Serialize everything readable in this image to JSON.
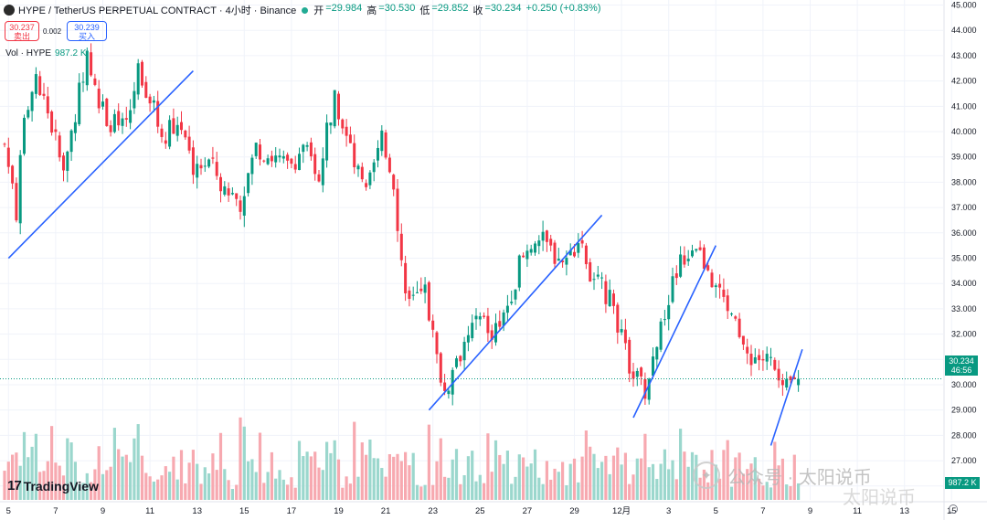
{
  "header": {
    "title": "HYPE / TetherUS PERPETUAL CONTRACT · 4小时 · Binance",
    "ohlc": [
      {
        "k": "开",
        "v": "=29.984"
      },
      {
        "k": "高",
        "v": "=30.530"
      },
      {
        "k": "低",
        "v": "=29.852"
      },
      {
        "k": "收",
        "v": "=30.234"
      },
      {
        "k": "",
        "v": "+0.250 (+0.83%)"
      }
    ]
  },
  "trade": {
    "sell_price": "30.237",
    "sell_label": "卖出",
    "spread": "0.002",
    "buy_price": "30.239",
    "buy_label": "买入"
  },
  "volume": {
    "label": "Vol · HYPE",
    "value": "987.2 K",
    "tag": "987.2 K"
  },
  "price_tag": {
    "price": "30.234",
    "countdown": "46:56"
  },
  "branding": {
    "logo_text": "TradingView",
    "logo_mark": "17"
  },
  "watermark": {
    "text": "公众号 · 太阳说币",
    "text2": "太阳说币"
  },
  "colors": {
    "up": "#089981",
    "down": "#f23645",
    "trend": "#2962ff"
  },
  "chart_data": {
    "type": "candlestick",
    "title": "HYPE / TetherUS PERPETUAL CONTRACT · 4小时 · Binance",
    "y_ticks": [
      26,
      27,
      28,
      29,
      30,
      31,
      32,
      33,
      34,
      35,
      36,
      37,
      38,
      39,
      40,
      41,
      42,
      43,
      44,
      45
    ],
    "y_tick_labels": [
      "26.000",
      "27.000",
      "28.000",
      "29.000",
      "30.000",
      "31.000",
      "32.000",
      "33.000",
      "34.000",
      "35.000",
      "36.000",
      "37.000",
      "38.000",
      "39.000",
      "40.000",
      "41.000",
      "42.000",
      "43.000",
      "44.000",
      "45.000"
    ],
    "ylim": [
      25.45,
      45.2
    ],
    "x_ticks": [
      {
        "label": "5",
        "index": 1
      },
      {
        "label": "7",
        "index": 13
      },
      {
        "label": "9",
        "index": 25
      },
      {
        "label": "11",
        "index": 37
      },
      {
        "label": "13",
        "index": 49
      },
      {
        "label": "15",
        "index": 61
      },
      {
        "label": "17",
        "index": 73
      },
      {
        "label": "19",
        "index": 85
      },
      {
        "label": "21",
        "index": 97
      },
      {
        "label": "23",
        "index": 109
      },
      {
        "label": "25",
        "index": 121
      },
      {
        "label": "27",
        "index": 133
      },
      {
        "label": "29",
        "index": 145
      },
      {
        "label": "12月",
        "index": 157
      },
      {
        "label": "3",
        "index": 169
      },
      {
        "label": "5",
        "index": 181
      },
      {
        "label": "7",
        "index": 193
      },
      {
        "label": "9",
        "index": 205
      },
      {
        "label": "11",
        "index": 217
      },
      {
        "label": "13",
        "index": 229
      },
      {
        "label": "15",
        "index": 241
      }
    ],
    "price_line": 30.234,
    "waypoints": [
      [
        0,
        39.5
      ],
      [
        3,
        36.8
      ],
      [
        5,
        40.5
      ],
      [
        8,
        42.3
      ],
      [
        12,
        40.2
      ],
      [
        15,
        38.3
      ],
      [
        18,
        40.8
      ],
      [
        21,
        43.2
      ],
      [
        24,
        41.0
      ],
      [
        27,
        40.4
      ],
      [
        31,
        40.1
      ],
      [
        34,
        42.5
      ],
      [
        37,
        41.4
      ],
      [
        40,
        39.8
      ],
      [
        44,
        40.4
      ],
      [
        48,
        38.6
      ],
      [
        52,
        38.8
      ],
      [
        56,
        37.8
      ],
      [
        60,
        37.2
      ],
      [
        64,
        39.4
      ],
      [
        68,
        39.0
      ],
      [
        72,
        38.6
      ],
      [
        76,
        39.3
      ],
      [
        80,
        38.4
      ],
      [
        84,
        41.5
      ],
      [
        88,
        39.2
      ],
      [
        92,
        37.4
      ],
      [
        96,
        39.6
      ],
      [
        99,
        38.1
      ],
      [
        101,
        34.8
      ],
      [
        103,
        33.2
      ],
      [
        107,
        33.7
      ],
      [
        110,
        31.0
      ],
      [
        112,
        29.7
      ],
      [
        116,
        31.3
      ],
      [
        120,
        32.6
      ],
      [
        124,
        32.1
      ],
      [
        128,
        33.2
      ],
      [
        131,
        34.7
      ],
      [
        135,
        35.9
      ],
      [
        139,
        35.3
      ],
      [
        142,
        34.8
      ],
      [
        146,
        35.6
      ],
      [
        149,
        34.4
      ],
      [
        152,
        33.8
      ],
      [
        155,
        33.1
      ],
      [
        158,
        31.2
      ],
      [
        161,
        30.2
      ],
      [
        163,
        29.7
      ],
      [
        166,
        31.4
      ],
      [
        169,
        33.5
      ],
      [
        172,
        34.9
      ],
      [
        176,
        35.6
      ],
      [
        179,
        34.5
      ],
      [
        182,
        33.6
      ],
      [
        185,
        32.8
      ],
      [
        188,
        31.2
      ],
      [
        191,
        31.1
      ],
      [
        195,
        30.9
      ],
      [
        198,
        29.6
      ],
      [
        200,
        30.0
      ],
      [
        202,
        30.234
      ]
    ],
    "trendlines": [
      {
        "from": [
          1,
          35.0
        ],
        "to": [
          48,
          42.4
        ]
      },
      {
        "from": [
          108,
          29.0
        ],
        "to": [
          152,
          36.7
        ]
      },
      {
        "from": [
          160,
          28.7
        ],
        "to": [
          181,
          35.5
        ]
      },
      {
        "from": [
          195,
          27.6
        ],
        "to": [
          203,
          31.4
        ]
      }
    ]
  }
}
